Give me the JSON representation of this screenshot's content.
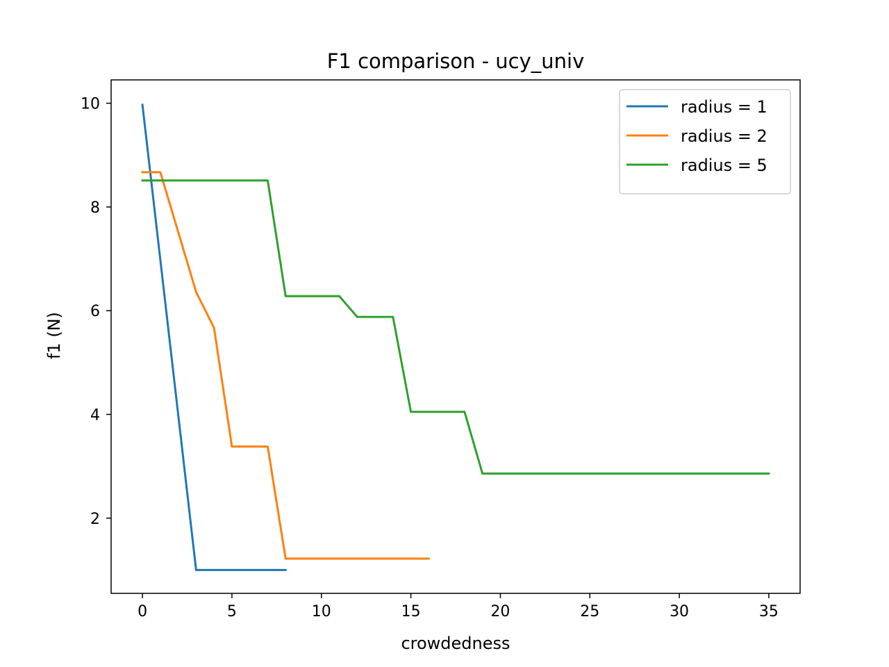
{
  "chart_data": {
    "type": "line",
    "title": "F1 comparison - ucy_univ",
    "xlabel": "crowdedness",
    "ylabel": "f1 (N)",
    "xlim": [
      -1.75,
      36.75
    ],
    "ylim": [
      0.55,
      10.45
    ],
    "xticks": [
      0,
      5,
      10,
      15,
      20,
      25,
      30,
      35
    ],
    "yticks": [
      2,
      4,
      6,
      8,
      10
    ],
    "grid": false,
    "legend_position": "upper right",
    "series": [
      {
        "name": "radius = 1",
        "color": "#1f77b4",
        "x": [
          0,
          3,
          4,
          5,
          6,
          7,
          8
        ],
        "y": [
          9.97,
          1.0,
          1.0,
          1.0,
          1.0,
          1.0,
          1.0
        ]
      },
      {
        "name": "radius = 2",
        "color": "#ff7f0e",
        "x": [
          0,
          1,
          3,
          4,
          5,
          6,
          7,
          8,
          9,
          10,
          11,
          12,
          13,
          14,
          15,
          16
        ],
        "y": [
          8.67,
          8.67,
          6.36,
          5.67,
          3.38,
          3.38,
          3.38,
          1.22,
          1.22,
          1.22,
          1.22,
          1.22,
          1.22,
          1.22,
          1.22,
          1.22
        ]
      },
      {
        "name": "radius = 5",
        "color": "#2ca02c",
        "x": [
          0,
          1,
          2,
          3,
          4,
          5,
          6,
          7,
          8,
          9,
          10,
          11,
          12,
          13,
          14,
          15,
          16,
          17,
          18,
          19,
          20,
          21,
          22,
          23,
          24,
          25,
          26,
          27,
          28,
          29,
          30,
          31,
          32,
          33,
          34,
          35
        ],
        "y": [
          8.51,
          8.51,
          8.51,
          8.51,
          8.51,
          8.51,
          8.51,
          8.51,
          6.28,
          6.28,
          6.28,
          6.28,
          5.88,
          5.88,
          5.88,
          4.05,
          4.05,
          4.05,
          4.05,
          2.86,
          2.86,
          2.86,
          2.86,
          2.86,
          2.86,
          2.86,
          2.86,
          2.86,
          2.86,
          2.86,
          2.86,
          2.86,
          2.86,
          2.86,
          2.86,
          2.86
        ]
      }
    ]
  }
}
